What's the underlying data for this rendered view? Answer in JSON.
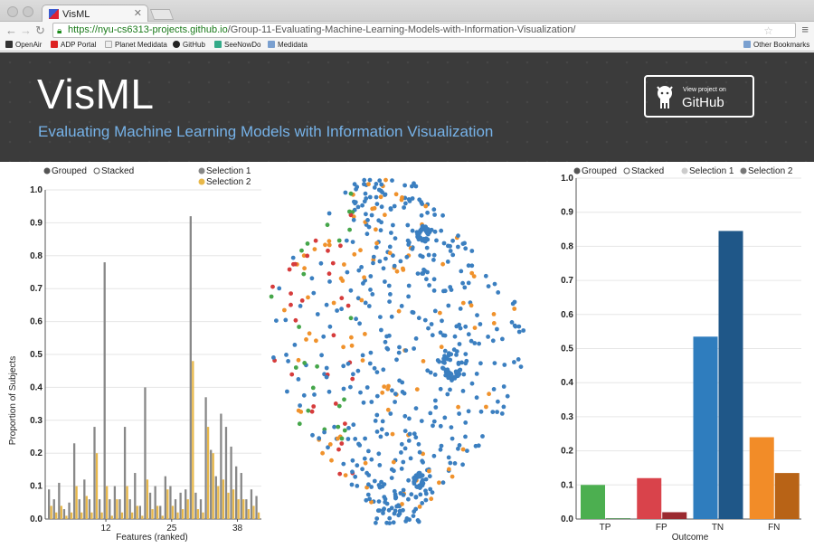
{
  "browser": {
    "tab_title": "VisML",
    "url_host": "https://nyu-cs6313-projects.github.io",
    "url_path": "/Group-11-Evaluating-Machine-Learning-Models-with-Information-Visualization/",
    "bookmarks": [
      "OpenAir",
      "ADP Portal",
      "Planet Medidata",
      "GitHub",
      "SeeNowDo",
      "Medidata"
    ],
    "other_bookmarks": "Other Bookmarks"
  },
  "header": {
    "title": "VisML",
    "subtitle": "Evaluating Machine Learning Models with Information Visualization",
    "github_small": "View project on",
    "github_big": "GitHub"
  },
  "colors": {
    "grouped": "#555555",
    "sel1_gray": "#888888",
    "sel2_yellow": "#e8b84a",
    "tp": "#4caf50",
    "fp": "#d9434b",
    "tn": "#2f7dbe",
    "fn": "#f28c28",
    "scatter_default": "#3b7fc0",
    "scatter_orange": "#f0922c",
    "scatter_red": "#d63c3c",
    "scatter_green": "#45a64a"
  },
  "left_panel": {
    "radio_grouped": "Grouped",
    "radio_stacked": "Stacked",
    "legend_sel1": "Selection 1",
    "legend_sel2": "Selection 2",
    "xlabel": "Features (ranked)",
    "ylabel": "Proportion of Subjects"
  },
  "right_panel": {
    "radio_grouped": "Grouped",
    "radio_stacked": "Stacked",
    "legend_sel1": "Selection 1",
    "legend_sel2": "Selection 2",
    "xlabel": "Outcome"
  },
  "chart_data": [
    {
      "type": "bar",
      "title": "",
      "xlabel": "Features (ranked)",
      "ylabel": "Proportion of Subjects",
      "ylim": [
        0,
        1.0
      ],
      "yticks": [
        0.0,
        0.1,
        0.2,
        0.3,
        0.4,
        0.5,
        0.6,
        0.7,
        0.8,
        0.9,
        1.0
      ],
      "xtick_labels": {
        "12": "12",
        "25": "25",
        "38": "38"
      },
      "series": [
        {
          "name": "Selection 1",
          "values": [
            0.09,
            0.06,
            0.11,
            0.03,
            0.05,
            0.23,
            0.06,
            0.12,
            0.06,
            0.28,
            0.06,
            0.78,
            0.06,
            0.1,
            0.06,
            0.28,
            0.06,
            0.14,
            0.04,
            0.4,
            0.08,
            0.1,
            0.04,
            0.13,
            0.1,
            0.06,
            0.08,
            0.09,
            0.92,
            0.08,
            0.06,
            0.37,
            0.21,
            0.13,
            0.32,
            0.28,
            0.22,
            0.16,
            0.14,
            0.06,
            0.09,
            0.07
          ]
        },
        {
          "name": "Selection 2",
          "values": [
            0.04,
            0.02,
            0.04,
            0.01,
            0.02,
            0.1,
            0.02,
            0.07,
            0.02,
            0.2,
            0.02,
            0.1,
            0.01,
            0.06,
            0.02,
            0.1,
            0.02,
            0.04,
            0.01,
            0.12,
            0.03,
            0.04,
            0.01,
            0.09,
            0.04,
            0.02,
            0.03,
            0.06,
            0.48,
            0.03,
            0.02,
            0.28,
            0.2,
            0.1,
            0.12,
            0.08,
            0.09,
            0.06,
            0.06,
            0.03,
            0.04,
            0.02
          ]
        }
      ]
    },
    {
      "type": "scatter",
      "title": "",
      "clusters": [
        "top",
        "right",
        "bottom"
      ],
      "colors": [
        "#3b7fc0",
        "#f0922c",
        "#d63c3c",
        "#45a64a"
      ]
    },
    {
      "type": "bar",
      "title": "",
      "xlabel": "Outcome",
      "categories": [
        "TP",
        "FP",
        "TN",
        "FN"
      ],
      "ylim": [
        0,
        1.0
      ],
      "yticks": [
        0.0,
        0.1,
        0.2,
        0.3,
        0.4,
        0.5,
        0.6,
        0.7,
        0.8,
        0.9,
        1.0
      ],
      "series": [
        {
          "name": "Selection 1",
          "values": [
            0.1,
            0.12,
            0.535,
            0.24
          ]
        },
        {
          "name": "Selection 2",
          "values": [
            0.002,
            0.02,
            0.845,
            0.135
          ]
        }
      ]
    }
  ]
}
